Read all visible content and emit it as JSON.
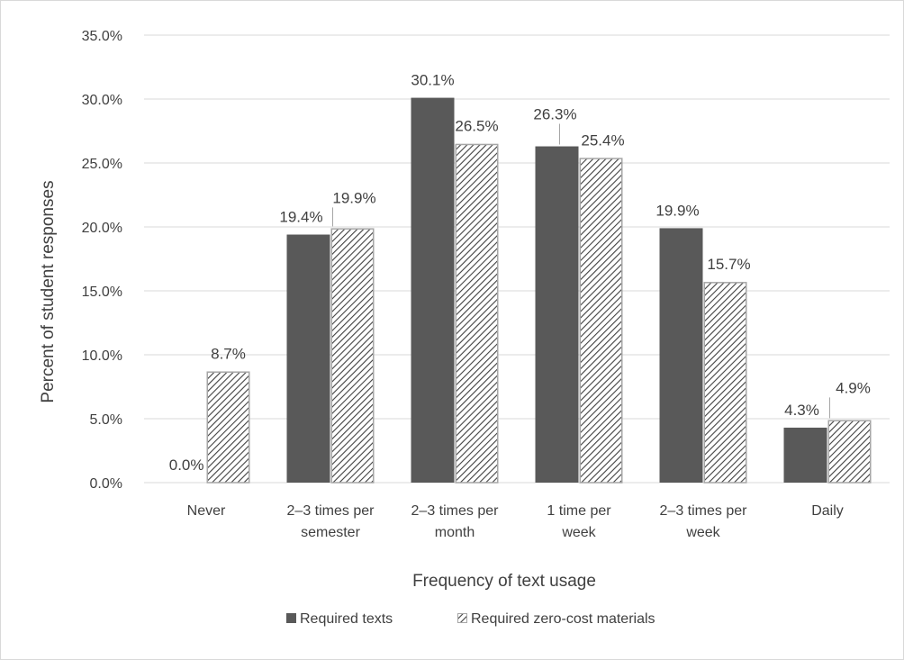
{
  "chart_data": {
    "type": "bar",
    "title": "",
    "xlabel": "Frequency of text usage",
    "ylabel": "Percent of student responses",
    "categories": [
      [
        "Never"
      ],
      [
        "2–3 times per",
        "semester"
      ],
      [
        "2–3 times per",
        "month"
      ],
      [
        "1 time per",
        "week"
      ],
      [
        "2–3 times per",
        "week"
      ],
      [
        "Daily"
      ]
    ],
    "series": [
      {
        "name": "Required texts",
        "values": [
          0.0,
          19.4,
          30.1,
          26.3,
          19.9,
          4.3
        ],
        "labels": [
          "0.0%",
          "19.4%",
          "30.1%",
          "26.3%",
          "19.9%",
          "4.3%"
        ],
        "color": "#595959",
        "pattern": "solid"
      },
      {
        "name": "Required zero-cost materials",
        "values": [
          8.7,
          19.9,
          26.5,
          25.4,
          15.7,
          4.9
        ],
        "labels": [
          "8.7%",
          "19.9%",
          "26.5%",
          "25.4%",
          "15.7%",
          "4.9%"
        ],
        "color": "#ffffff",
        "pattern": "diagonal-hatch"
      }
    ],
    "ylim": [
      0,
      35
    ],
    "yticks": [
      0,
      5,
      10,
      15,
      20,
      25,
      30,
      35
    ],
    "ytick_labels": [
      "0.0%",
      "5.0%",
      "10.0%",
      "15.0%",
      "20.0%",
      "25.0%",
      "30.0%",
      "35.0%"
    ],
    "grid": true,
    "legend_position": "bottom",
    "colors": {
      "grid": "#d9d9d9",
      "text": "#404040",
      "hatch_stroke": "#404040",
      "hatch_border": "#a6a6a6"
    }
  }
}
